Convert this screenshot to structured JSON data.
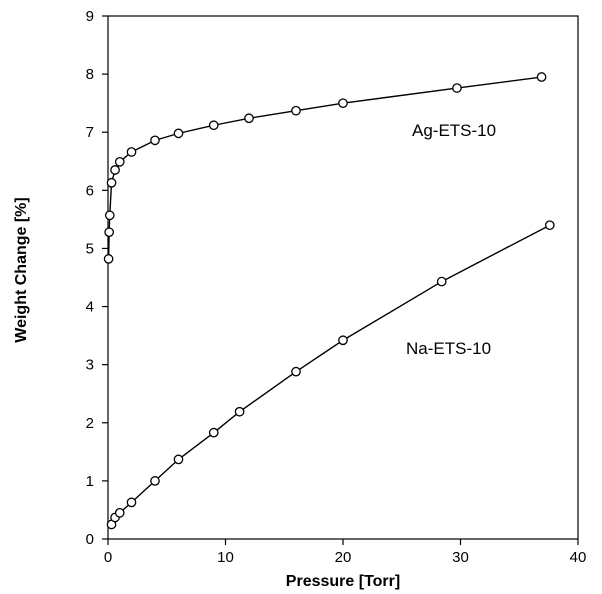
{
  "chart_data": {
    "type": "line",
    "xlabel": "Pressure [Torr]",
    "ylabel": "Weight Change [%]",
    "xlim": [
      0,
      40
    ],
    "ylim": [
      0,
      9
    ],
    "xticks": [
      0,
      10,
      20,
      30,
      40
    ],
    "yticks": [
      0,
      1,
      2,
      3,
      4,
      5,
      6,
      7,
      8,
      9
    ],
    "grid": false,
    "legend": "none",
    "marker": "open-circle",
    "series": [
      {
        "name": "Ag-ETS-10",
        "x": [
          0.05,
          0.1,
          0.15,
          0.3,
          0.6,
          1.0,
          2.0,
          4.0,
          6.0,
          9.0,
          12.0,
          16.0,
          20.0,
          29.7,
          36.9
        ],
        "y": [
          4.82,
          5.28,
          5.57,
          6.13,
          6.35,
          6.49,
          6.66,
          6.86,
          6.98,
          7.12,
          7.24,
          7.37,
          7.5,
          7.76,
          7.95
        ]
      },
      {
        "name": "Na-ETS-10",
        "x": [
          0.3,
          0.6,
          1.0,
          2.0,
          4.0,
          6.0,
          9.0,
          11.2,
          16.0,
          20.0,
          28.4,
          37.6
        ],
        "y": [
          0.25,
          0.37,
          0.45,
          0.63,
          1.0,
          1.37,
          1.83,
          2.19,
          2.88,
          3.42,
          4.43,
          5.4
        ]
      }
    ]
  }
}
